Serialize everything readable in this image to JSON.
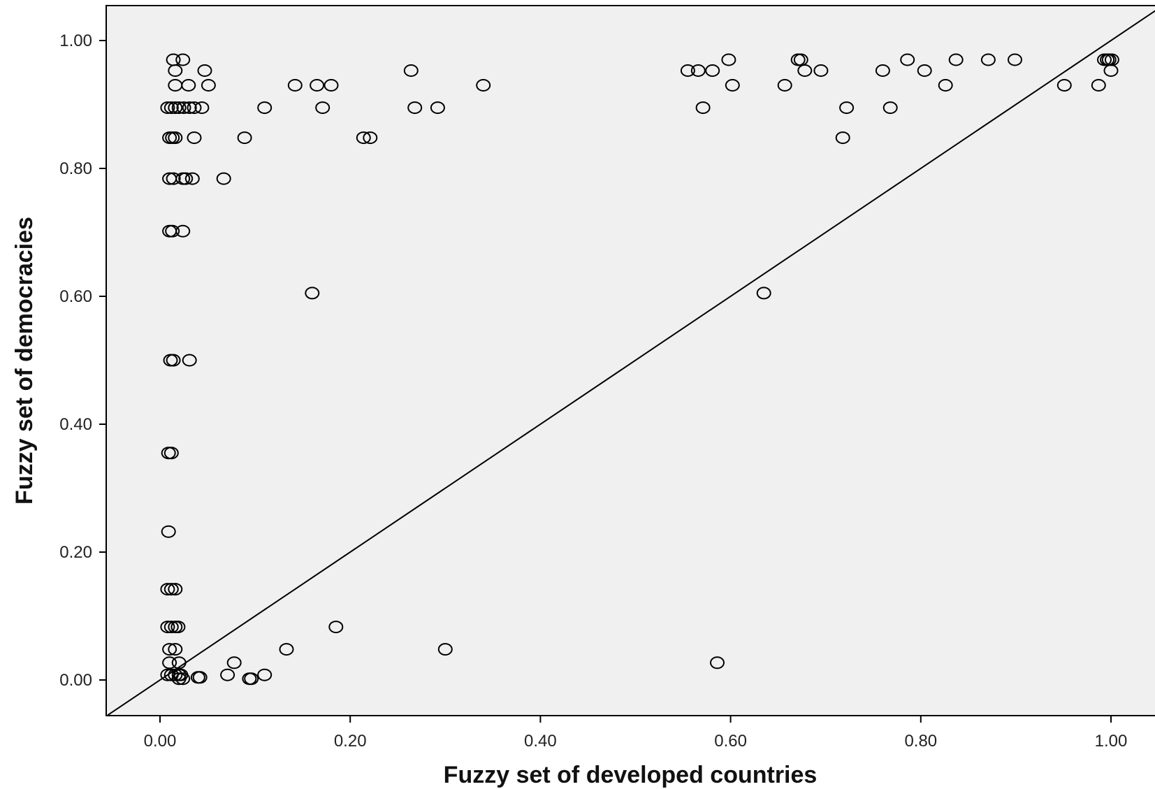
{
  "chart_data": {
    "type": "scatter",
    "title": "",
    "xlabel": "Fuzzy set of developed countries",
    "ylabel": "Fuzzy set of democracies",
    "xlim": [
      -0.055,
      1.08
    ],
    "ylim": [
      -0.055,
      1.055
    ],
    "xticks": [
      "0.00",
      "0.20",
      "0.40",
      "0.60",
      "0.80",
      "1.00"
    ],
    "yticks": [
      "0.00",
      "0.20",
      "0.40",
      "0.60",
      "0.80",
      "1.00"
    ],
    "grid": false,
    "reference_line": "diagonal y = x",
    "colors": {
      "plot_bg": "#f0f0f0",
      "marker_stroke": "#000000",
      "line": "#000000",
      "axis": "#000000"
    },
    "points": [
      [
        0.014,
        0.97
      ],
      [
        0.024,
        0.97
      ],
      [
        0.016,
        0.953
      ],
      [
        0.047,
        0.953
      ],
      [
        0.016,
        0.93
      ],
      [
        0.03,
        0.93
      ],
      [
        0.051,
        0.93
      ],
      [
        0.008,
        0.895
      ],
      [
        0.012,
        0.895
      ],
      [
        0.016,
        0.895
      ],
      [
        0.02,
        0.895
      ],
      [
        0.025,
        0.895
      ],
      [
        0.031,
        0.895
      ],
      [
        0.036,
        0.895
      ],
      [
        0.044,
        0.895
      ],
      [
        0.01,
        0.848
      ],
      [
        0.013,
        0.848
      ],
      [
        0.016,
        0.848
      ],
      [
        0.036,
        0.848
      ],
      [
        0.01,
        0.784
      ],
      [
        0.014,
        0.784
      ],
      [
        0.024,
        0.784
      ],
      [
        0.027,
        0.784
      ],
      [
        0.034,
        0.784
      ],
      [
        0.01,
        0.702
      ],
      [
        0.013,
        0.702
      ],
      [
        0.024,
        0.702
      ],
      [
        0.011,
        0.5
      ],
      [
        0.014,
        0.5
      ],
      [
        0.031,
        0.5
      ],
      [
        0.009,
        0.355
      ],
      [
        0.012,
        0.355
      ],
      [
        0.009,
        0.232
      ],
      [
        0.008,
        0.142
      ],
      [
        0.012,
        0.142
      ],
      [
        0.016,
        0.142
      ],
      [
        0.008,
        0.083
      ],
      [
        0.012,
        0.083
      ],
      [
        0.016,
        0.083
      ],
      [
        0.019,
        0.083
      ],
      [
        0.01,
        0.048
      ],
      [
        0.016,
        0.048
      ],
      [
        0.01,
        0.027
      ],
      [
        0.02,
        0.027
      ],
      [
        0.008,
        0.008
      ],
      [
        0.012,
        0.008
      ],
      [
        0.016,
        0.008
      ],
      [
        0.02,
        0.008
      ],
      [
        0.022,
        0.008
      ],
      [
        0.02,
        0.002
      ],
      [
        0.024,
        0.002
      ],
      [
        0.04,
        0.004
      ],
      [
        0.042,
        0.004
      ],
      [
        0.071,
        0.008
      ],
      [
        0.078,
        0.027
      ],
      [
        0.094,
        0.002
      ],
      [
        0.096,
        0.002
      ],
      [
        0.11,
        0.008
      ],
      [
        0.067,
        0.784
      ],
      [
        0.089,
        0.848
      ],
      [
        0.11,
        0.895
      ],
      [
        0.142,
        0.93
      ],
      [
        0.165,
        0.93
      ],
      [
        0.18,
        0.93
      ],
      [
        0.171,
        0.895
      ],
      [
        0.16,
        0.605
      ],
      [
        0.133,
        0.048
      ],
      [
        0.185,
        0.083
      ],
      [
        0.214,
        0.848
      ],
      [
        0.221,
        0.848
      ],
      [
        0.264,
        0.953
      ],
      [
        0.268,
        0.895
      ],
      [
        0.292,
        0.895
      ],
      [
        0.3,
        0.048
      ],
      [
        0.34,
        0.93
      ],
      [
        0.555,
        0.953
      ],
      [
        0.566,
        0.953
      ],
      [
        0.581,
        0.953
      ],
      [
        0.598,
        0.97
      ],
      [
        0.602,
        0.93
      ],
      [
        0.571,
        0.895
      ],
      [
        0.586,
        0.027
      ],
      [
        0.635,
        0.605
      ],
      [
        0.657,
        0.93
      ],
      [
        0.671,
        0.97
      ],
      [
        0.674,
        0.97
      ],
      [
        0.678,
        0.953
      ],
      [
        0.695,
        0.953
      ],
      [
        0.718,
        0.848
      ],
      [
        0.722,
        0.895
      ],
      [
        0.76,
        0.953
      ],
      [
        0.768,
        0.895
      ],
      [
        0.786,
        0.97
      ],
      [
        0.804,
        0.953
      ],
      [
        0.826,
        0.93
      ],
      [
        0.837,
        0.97
      ],
      [
        0.871,
        0.97
      ],
      [
        0.899,
        0.97
      ],
      [
        0.951,
        0.93
      ],
      [
        0.987,
        0.93
      ],
      [
        0.993,
        0.97
      ],
      [
        0.996,
        0.97
      ],
      [
        0.998,
        0.97
      ],
      [
        1.0,
        0.953
      ],
      [
        1.001,
        0.97
      ]
    ]
  }
}
